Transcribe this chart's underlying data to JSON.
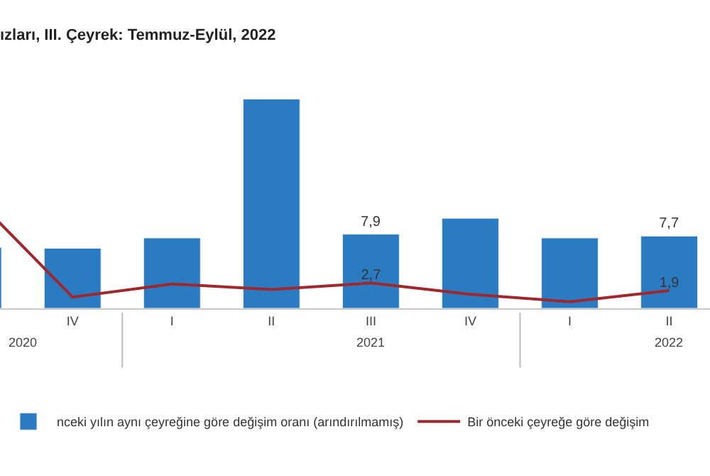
{
  "chart_data": {
    "type": "bar",
    "title": "ızları, III. Çeyrek: Temmuz-Eylül, 2022",
    "categories": [
      null,
      "IV",
      "I",
      "II",
      "III",
      "IV",
      "I",
      "II"
    ],
    "series": [
      {
        "name": "nceki yılın aynı çeyreğine göre değişim oranı (arındırılmamış)",
        "color": "#2a7bc1",
        "values": [
          6.5,
          6.4,
          7.5,
          22.3,
          7.9,
          9.6,
          7.5,
          7.7
        ],
        "value_labels": [
          null,
          null,
          null,
          null,
          "7,9",
          null,
          null,
          "7,7"
        ]
      },
      {
        "name": "Bir önceki çeyreğe göre değişim",
        "type": "line",
        "color": "#a0282d",
        "values": [
          12,
          1.2,
          2.6,
          2.0,
          2.7,
          1.5,
          0.7,
          1.9
        ],
        "value_labels": [
          null,
          null,
          null,
          null,
          "2,7",
          null,
          null,
          "1,9"
        ]
      }
    ],
    "annotations": [
      "2020",
      "2021",
      "2022"
    ],
    "tick_labels": "x",
    "legend": "bottom",
    "line_style": "solid"
  }
}
